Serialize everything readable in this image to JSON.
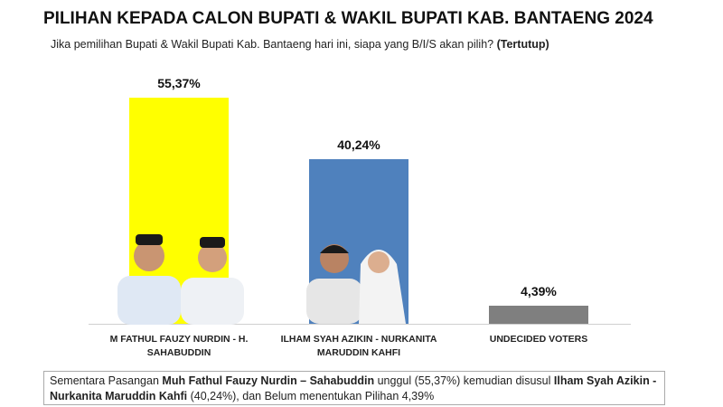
{
  "chart_data": {
    "type": "bar",
    "title": "PILIHAN KEPADA CALON BUPATI & WAKIL BUPATI KAB. BANTAENG 2024",
    "subtitle": "Jika pemilihan Bupati & Wakil Bupati Kab. Bantaeng hari ini, siapa yang B/I/S akan pilih?",
    "subtitle_note": "(Tertutup)",
    "categories": [
      "M FATHUL FAUZY NURDIN - H. SAHABUDDIN",
      "ILHAM SYAH AZIKIN - NURKANITA MARUDDIN KAHFI",
      "UNDECIDED VOTERS"
    ],
    "values": [
      55.37,
      40.24,
      4.39
    ],
    "value_labels": [
      "55,37%",
      "40,24%",
      "4,39%"
    ],
    "colors": [
      "#ffff00",
      "#4f81bd",
      "#7f7f7f"
    ],
    "footnote": [
      "Sementara Pasangan",
      "Muh Fathul Fauzy Nurdin – Sahabuddin",
      "unggul (55,37%) kemudian disusul",
      "Ilham Syah Azikin - Nurkanita Maruddin Kahfi",
      "(40,24%), dan Belum menentukan Pilihan 4,39%"
    ]
  }
}
